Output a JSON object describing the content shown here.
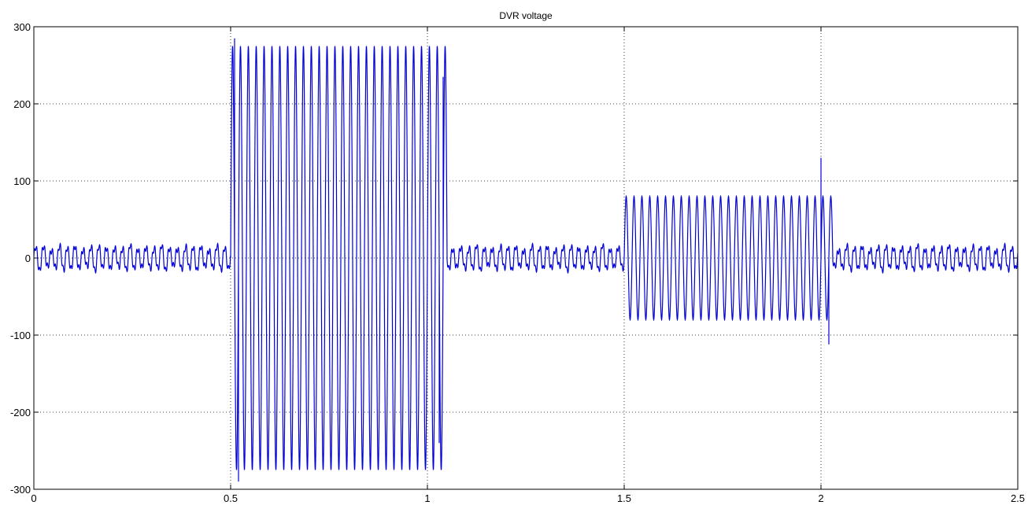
{
  "chart_data": {
    "type": "line",
    "title": "DVR voltage",
    "xlabel": "",
    "ylabel": "",
    "xlim": [
      0,
      2.5
    ],
    "ylim": [
      -300,
      300
    ],
    "x_ticks": [
      0,
      0.5,
      1,
      1.5,
      2,
      2.5
    ],
    "x_tick_labels": [
      "0",
      "0.5",
      "1",
      "1.5",
      "2",
      "2.5"
    ],
    "y_ticks": [
      300,
      200,
      100,
      0,
      -100,
      -200,
      -300
    ],
    "y_tick_labels": [
      "300",
      "200",
      "100",
      "0",
      "-100",
      "-200",
      "-300"
    ],
    "grid": true,
    "line_color": "#0000d8",
    "series": [
      {
        "frequency_hz": 50,
        "segments": [
          {
            "t_start": 0.0,
            "t_end": 0.5,
            "amplitude": 20
          },
          {
            "t_start": 0.5,
            "t_end": 1.05,
            "amplitude": 275
          },
          {
            "t_start": 1.05,
            "t_end": 1.5,
            "amplitude": 20
          },
          {
            "t_start": 1.5,
            "t_end": 2.03,
            "amplitude": 80
          },
          {
            "t_start": 2.03,
            "t_end": 2.5,
            "amplitude": 20
          }
        ],
        "peaks": [
          {
            "t": 0.51,
            "value": 285
          },
          {
            "t": 0.52,
            "value": -290
          },
          {
            "t": 1.04,
            "value": 235
          },
          {
            "t": 1.03,
            "value": -240
          },
          {
            "t": 2.0,
            "value": 130
          },
          {
            "t": 2.02,
            "value": -112
          }
        ]
      }
    ]
  }
}
